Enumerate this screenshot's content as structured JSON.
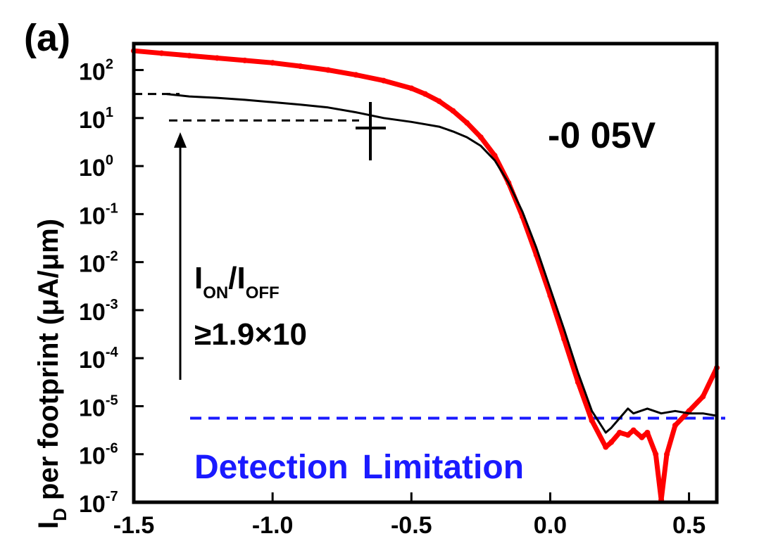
{
  "chart_data": {
    "type": "line",
    "panel_label": "(a)",
    "ylabel": {
      "main": "I",
      "sub": "D",
      "rest": " per footprint (μA/μm)"
    },
    "x_ticks": [
      "-1.5",
      "-1.0",
      "-0.5",
      "0.0",
      "0.5"
    ],
    "x_tick_values": [
      -1.5,
      -1.0,
      -0.5,
      0.0,
      0.5
    ],
    "y_ticks": [
      {
        "base": "10",
        "exp": "2",
        "value": 2
      },
      {
        "base": "10",
        "exp": "1",
        "value": 1
      },
      {
        "base": "10",
        "exp": "0",
        "value": 0
      },
      {
        "base": "10",
        "exp": "-1",
        "value": -1
      },
      {
        "base": "10",
        "exp": "-2",
        "value": -2
      },
      {
        "base": "10",
        "exp": "-3",
        "value": -3
      },
      {
        "base": "10",
        "exp": "-4",
        "value": -4
      },
      {
        "base": "10",
        "exp": "-5",
        "value": -5
      },
      {
        "base": "10",
        "exp": "-6",
        "value": -6
      },
      {
        "base": "10",
        "exp": "-7",
        "value": -7
      }
    ],
    "xlim": [
      -1.5,
      0.6
    ],
    "ylim_log10": [
      -7,
      2.55
    ],
    "y_scale": "log",
    "grid": false,
    "annotations": {
      "vds_label": "-0 05V",
      "ratio_line1": {
        "main": "I",
        "sub1": "ON",
        "mid": "/I",
        "sub2": "OFF"
      },
      "ratio_line2": "≥1.9×10",
      "detection": {
        "word1": "Detection",
        "word2": "Limitation"
      }
    },
    "detection_limit_log10": -5.25,
    "on_level_log10": 1.5,
    "off_level_log10": 0.95,
    "series": [
      {
        "color": "#ff0000",
        "x": [
          -1.5,
          -1.4,
          -1.3,
          -1.2,
          -1.1,
          -1.0,
          -0.9,
          -0.8,
          -0.7,
          -0.6,
          -0.5,
          -0.45,
          -0.4,
          -0.35,
          -0.3,
          -0.25,
          -0.2,
          -0.15,
          -0.1,
          -0.05,
          0.0,
          0.05,
          0.1,
          0.15,
          0.2,
          0.22,
          0.25,
          0.28,
          0.3,
          0.33,
          0.35,
          0.38,
          0.4,
          0.42,
          0.45,
          0.5,
          0.55,
          0.6
        ],
        "y_log10": [
          2.4,
          2.35,
          2.3,
          2.25,
          2.2,
          2.15,
          2.08,
          2.0,
          1.9,
          1.78,
          1.62,
          1.5,
          1.35,
          1.15,
          0.9,
          0.6,
          0.22,
          -0.35,
          -1.05,
          -1.85,
          -2.7,
          -3.6,
          -4.5,
          -5.3,
          -5.85,
          -5.75,
          -5.55,
          -5.6,
          -5.5,
          -5.65,
          -5.55,
          -6.0,
          -6.95,
          -6.0,
          -5.4,
          -5.1,
          -4.8,
          -4.2
        ]
      },
      {
        "color": "#000000",
        "x": [
          -1.38,
          -1.3,
          -1.2,
          -1.1,
          -1.0,
          -0.9,
          -0.8,
          -0.7,
          -0.6,
          -0.5,
          -0.45,
          -0.4,
          -0.35,
          -0.3,
          -0.25,
          -0.2,
          -0.15,
          -0.1,
          -0.05,
          0.0,
          0.05,
          0.1,
          0.15,
          0.2,
          0.22,
          0.25,
          0.28,
          0.3,
          0.35,
          0.4,
          0.45,
          0.5,
          0.55,
          0.6
        ],
        "y_log10": [
          1.5,
          1.45,
          1.42,
          1.38,
          1.33,
          1.28,
          1.22,
          1.12,
          1.0,
          0.92,
          0.87,
          0.82,
          0.72,
          0.6,
          0.42,
          0.12,
          -0.35,
          -0.95,
          -1.7,
          -2.55,
          -3.4,
          -4.3,
          -5.1,
          -5.55,
          -5.45,
          -5.25,
          -5.05,
          -5.15,
          -5.05,
          -5.15,
          -5.1,
          -5.15,
          -5.15,
          -5.2
        ]
      }
    ]
  }
}
